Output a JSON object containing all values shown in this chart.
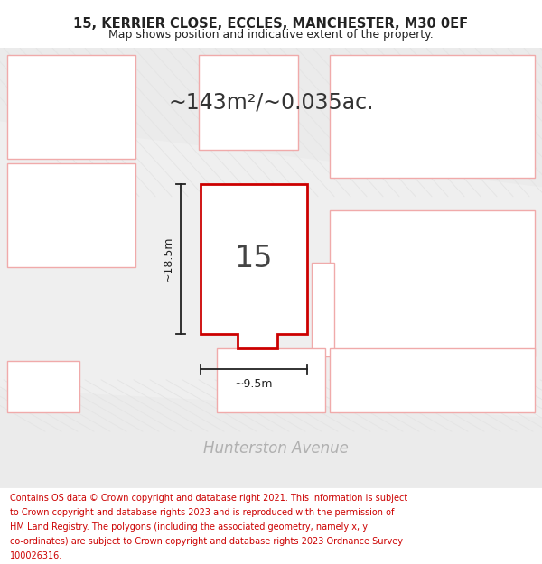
{
  "title_line1": "15, KERRIER CLOSE, ECCLES, MANCHESTER, M30 0EF",
  "title_line2": "Map shows position and indicative extent of the property.",
  "area_text": "~143m²/~0.035ac.",
  "number_label": "15",
  "dim_height": "~18.5m",
  "dim_width": "~9.5m",
  "street_label": "Hunterston Avenue",
  "footer_lines": [
    "Contains OS data © Crown copyright and database right 2021. This information is subject",
    "to Crown copyright and database rights 2023 and is reproduced with the permission of",
    "HM Land Registry. The polygons (including the associated geometry, namely x, y",
    "co-ordinates) are subject to Crown copyright and database rights 2023 Ordnance Survey",
    "100026316."
  ],
  "bg_color": "#f2f2f2",
  "map_bg": "#efefef",
  "road_fill": "#e0e0e0",
  "plot_fill": "#ffffff",
  "plot_edge": "#cc0000",
  "neighbor_edge": "#f0aaaa",
  "neighbor_fill": "#ffffff",
  "title_color": "#222222",
  "footer_color": "#cc0000",
  "street_label_color": "#b0b0b0",
  "dim_color": "#222222",
  "stripe_color": "#e4e4e4",
  "stripe_bg": "#ebebeb"
}
